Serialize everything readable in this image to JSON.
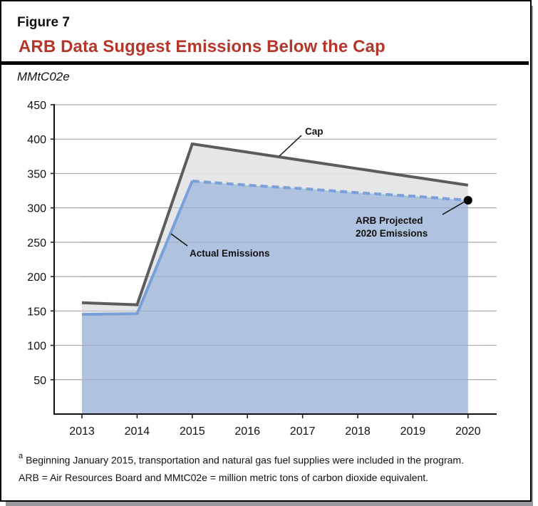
{
  "figure": {
    "label": "Figure 7",
    "title": "ARB Data Suggest Emissions Below the Cap",
    "units": "MMtC02e",
    "colors": {
      "title": "#b5362a",
      "cap_line": "#5c5c5e",
      "cap_fill": "#e3e4e6",
      "actual_line": "#7aa0d8",
      "actual_fill": "#afc2df",
      "marker": "#000000"
    }
  },
  "annotations": {
    "cap": "Cap",
    "actual": "Actual Emissions",
    "projected_line1": "ARB Projected",
    "projected_line2": "2020 Emissions"
  },
  "footnotes": {
    "note_marker": "a",
    "note": "Beginning January 2015, transportation and natural gas fuel supplies were included in the program.",
    "abbrev": "ARB = Air Resources Board and MMtC02e = million metric tons of carbon dioxide equivalent."
  },
  "chart_data": {
    "type": "area",
    "title": "ARB Data Suggest Emissions Below the Cap",
    "xlabel": "",
    "ylabel": "MMtC02e",
    "categories": [
      "2013",
      "2014",
      "2015",
      "2016",
      "2017",
      "2018",
      "2019",
      "2020"
    ],
    "y_ticks": [
      50,
      100,
      150,
      200,
      250,
      300,
      350,
      400,
      450
    ],
    "ylim": [
      0,
      450
    ],
    "grid": true,
    "series": [
      {
        "name": "Cap",
        "style": "solid",
        "values": [
          162,
          159,
          393,
          381,
          369,
          357,
          345,
          333
        ]
      },
      {
        "name": "Actual Emissions",
        "style": "solid",
        "values": [
          145,
          146,
          339,
          null,
          null,
          null,
          null,
          null
        ]
      },
      {
        "name": "ARB Projected Emissions",
        "style": "dashed",
        "values": [
          null,
          null,
          339,
          333,
          328,
          322,
          317,
          311
        ]
      }
    ],
    "annotations": [
      {
        "text": "Cap",
        "target": "Cap line near 2016-2017"
      },
      {
        "text": "Actual Emissions",
        "target": "Actual line between 2014 and 2015"
      },
      {
        "text": "ARB Projected 2020 Emissions",
        "target": "Marker at 2020, 311"
      }
    ]
  }
}
